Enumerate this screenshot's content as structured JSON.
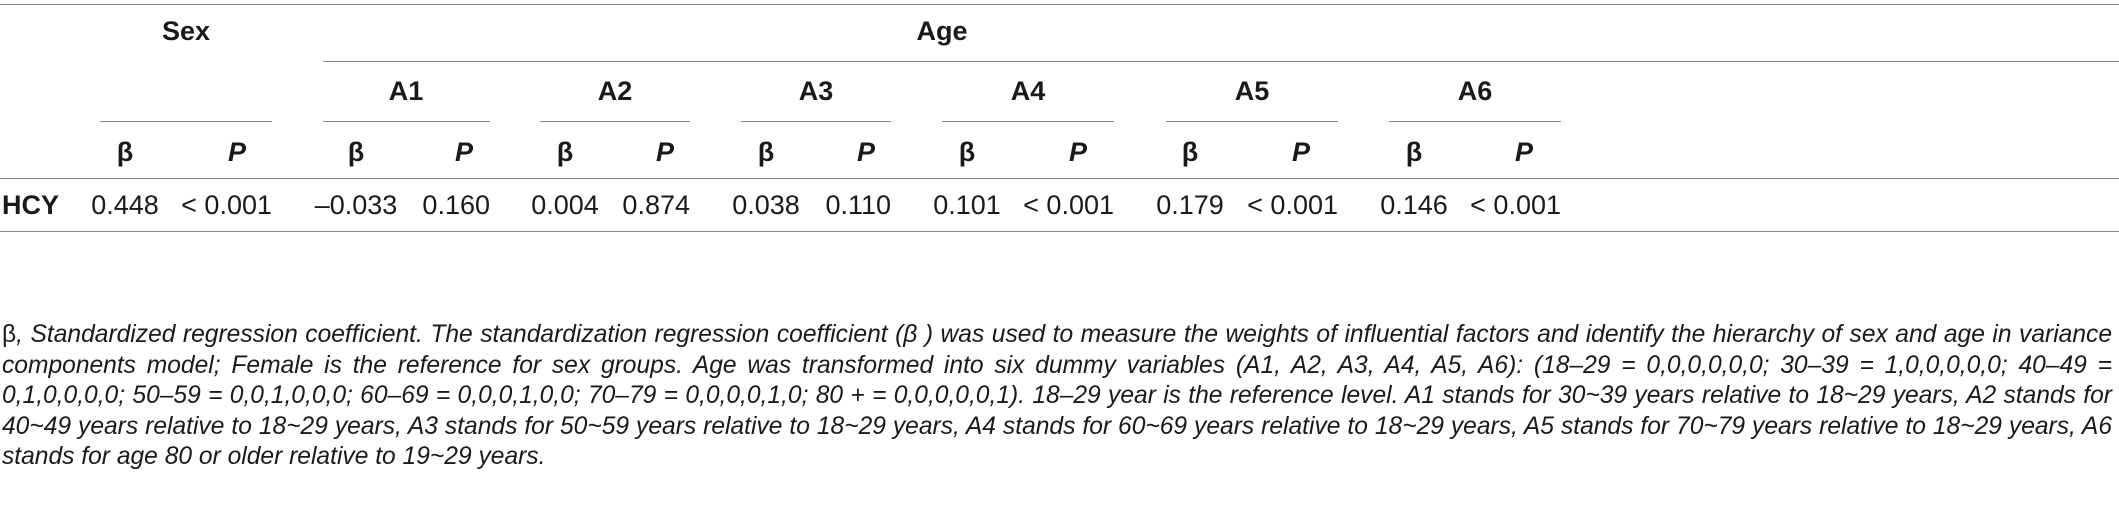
{
  "table": {
    "group_headers": {
      "sex": "Sex",
      "age": "Age"
    },
    "age_groups": [
      "A1",
      "A2",
      "A3",
      "A4",
      "A5",
      "A6"
    ],
    "stat_headers": {
      "beta": "β",
      "p": "P"
    },
    "rows": [
      {
        "label": "HCY",
        "values": [
          "0.448",
          "< 0.001",
          "–0.033",
          "0.160",
          "0.004",
          "0.874",
          "0.038",
          "0.110",
          "0.101",
          "< 0.001",
          "0.179",
          "< 0.001",
          "0.146",
          "< 0.001"
        ]
      }
    ]
  },
  "footnote": {
    "beta_symbol": "β",
    "text": ", Standardized regression coefficient. The standardization regression coefficient (β ) was used to measure the weights of influential factors and identify the hierarchy of sex and age in variance components model; Female is the reference for sex groups. Age was transformed into six dummy variables (A1, A2, A3, A4, A5, A6): (18–29 = 0,0,0,0,0,0; 30–39 = 1,0,0,0,0,0; 40–49 = 0,1,0,0,0,0; 50–59 = 0,0,1,0,0,0; 60–69 = 0,0,0,1,0,0; 70–79 = 0,0,0,0,1,0; 80 + = 0,0,0,0,0,1). 18–29 year is the reference level. A1 stands for 30~39 years relative to 18~29 years, A2 stands for 40~49 years relative to 18~29 years, A3 stands for 50~59 years relative to 18~29 years, A4 stands for 60~69 years relative to 18~29 years, A5 stands for 70~79 years relative to 18~29 years, A6 stands for age 80 or older relative to 19~29 years."
  }
}
